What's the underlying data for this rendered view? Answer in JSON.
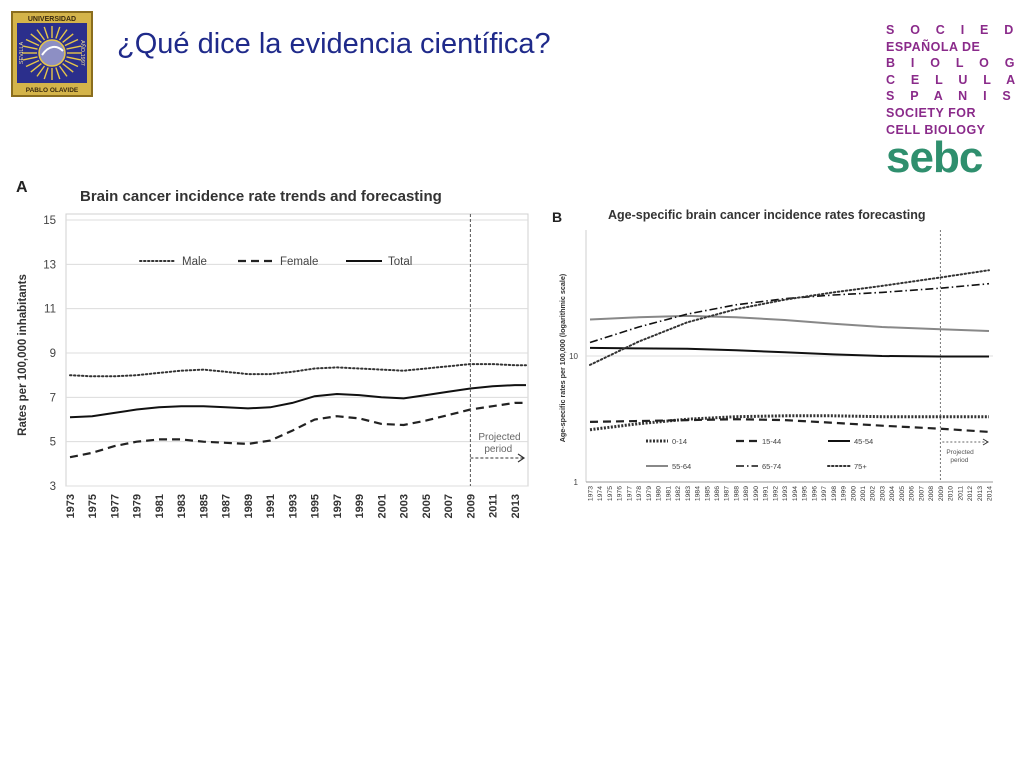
{
  "slide": {
    "title": "¿Qué dice la evidencia científica?",
    "left_logo": {
      "text_top": "UNIVERSIDAD",
      "text_left": "SEVILLA",
      "text_right": "AÑO 1997",
      "text_bottom": "PABLO OLAVIDE",
      "colors": {
        "frame": "#d4b44a",
        "field": "#2b2f8c",
        "rays": "#e6c64a"
      }
    },
    "sebc": {
      "lines": [
        "S O C I E D A D",
        "ESPAÑOLA DE",
        "B I O L O G Í A",
        "C E L U L A R",
        "S P A N I S H",
        "SOCIETY FOR",
        "CELL BIOLOGY"
      ],
      "word": "sebc",
      "colors": {
        "text": "#8a2a8a",
        "word": "#2f8f6e"
      }
    }
  },
  "chart_data": [
    {
      "panel_label": "A",
      "type": "line",
      "title": "Brain cancer incidence rate trends and forecasting",
      "xlabel": "",
      "ylabel": "Rates per 100,000 inhabitants",
      "ylim": [
        3,
        15
      ],
      "yticks": [
        3,
        5,
        7,
        9,
        11,
        13,
        15
      ],
      "xlim": [
        1973,
        2014
      ],
      "xtick_labels": [
        "1973",
        "1975",
        "1977",
        "1979",
        "1981",
        "1983",
        "1985",
        "1987",
        "1989",
        "1991",
        "1993",
        "1995",
        "1997",
        "1999",
        "2001",
        "2003",
        "2005",
        "2007",
        "2009",
        "2011",
        "2013"
      ],
      "grid": "horizontal",
      "legend_position": "top",
      "projection_start": 2009,
      "annotation": [
        "Projected",
        "period"
      ],
      "x": [
        1973,
        1975,
        1977,
        1979,
        1981,
        1983,
        1985,
        1987,
        1989,
        1991,
        1993,
        1995,
        1997,
        1999,
        2001,
        2003,
        2005,
        2007,
        2009,
        2011,
        2013,
        2014
      ],
      "series": [
        {
          "name": "Male",
          "style": "dotted",
          "values": [
            8.0,
            7.95,
            7.95,
            8.0,
            8.1,
            8.2,
            8.25,
            8.15,
            8.05,
            8.05,
            8.15,
            8.3,
            8.35,
            8.3,
            8.25,
            8.2,
            8.3,
            8.4,
            8.5,
            8.5,
            8.45,
            8.45
          ]
        },
        {
          "name": "Female",
          "style": "dashed",
          "values": [
            4.3,
            4.5,
            4.8,
            5.0,
            5.1,
            5.1,
            5.0,
            4.95,
            4.9,
            5.05,
            5.5,
            6.0,
            6.15,
            6.05,
            5.8,
            5.75,
            5.95,
            6.2,
            6.45,
            6.6,
            6.75,
            6.75
          ]
        },
        {
          "name": "Total",
          "style": "solid",
          "values": [
            6.1,
            6.15,
            6.3,
            6.45,
            6.55,
            6.6,
            6.6,
            6.55,
            6.5,
            6.55,
            6.75,
            7.05,
            7.15,
            7.1,
            7.0,
            6.95,
            7.1,
            7.25,
            7.4,
            7.5,
            7.55,
            7.55
          ]
        }
      ]
    },
    {
      "panel_label": "B",
      "type": "line",
      "title": "Age-specific brain cancer incidence rates forecasting",
      "xlabel": "",
      "ylabel": "Age-specific rates per 100,000 (logarithmic scale)",
      "yscale": "log",
      "ylim": [
        1,
        100
      ],
      "ytick_labels": [
        "1",
        "10"
      ],
      "xlim": [
        1973,
        2014
      ],
      "xtick_labels": [
        "1973",
        "1974",
        "1975",
        "1976",
        "1977",
        "1978",
        "1979",
        "1980",
        "1981",
        "1982",
        "1983",
        "1984",
        "1985",
        "1986",
        "1987",
        "1988",
        "1989",
        "1990",
        "1991",
        "1992",
        "1993",
        "1994",
        "1995",
        "1996",
        "1997",
        "1998",
        "1999",
        "2000",
        "2001",
        "2002",
        "2003",
        "2004",
        "2005",
        "2006",
        "2007",
        "2008",
        "2009",
        "2010",
        "2011",
        "2012",
        "2013",
        "2014"
      ],
      "grid": "horizontal",
      "legend_position": "bottom-left",
      "projection_start": 2009,
      "annotation": [
        "Projected",
        "period"
      ],
      "x": [
        1973,
        1978,
        1983,
        1988,
        1993,
        1998,
        2003,
        2009,
        2014
      ],
      "series": [
        {
          "name": "0-14",
          "style": "heavy-dotted",
          "values": [
            2.6,
            2.9,
            3.15,
            3.3,
            3.35,
            3.35,
            3.3,
            3.3,
            3.3
          ]
        },
        {
          "name": "15-44",
          "style": "dashed",
          "values": [
            3.0,
            3.05,
            3.1,
            3.15,
            3.1,
            2.95,
            2.8,
            2.65,
            2.5
          ]
        },
        {
          "name": "45-54",
          "style": "solid",
          "values": [
            11.6,
            11.5,
            11.4,
            11.1,
            10.7,
            10.3,
            10.0,
            9.9,
            9.9
          ]
        },
        {
          "name": "55-64",
          "style": "solid-gray",
          "values": [
            19.5,
            20.3,
            20.8,
            20.3,
            19.3,
            18.0,
            17.0,
            16.3,
            15.8
          ]
        },
        {
          "name": "65-74",
          "style": "dash-dot",
          "values": [
            12.8,
            17.0,
            21.5,
            25.5,
            28.5,
            30.5,
            32.0,
            34.5,
            37.5
          ]
        },
        {
          "name": "75+",
          "style": "dotted",
          "values": [
            8.5,
            13.0,
            18.5,
            23.5,
            28.0,
            32.0,
            36.0,
            42.0,
            48.0
          ]
        }
      ]
    }
  ]
}
